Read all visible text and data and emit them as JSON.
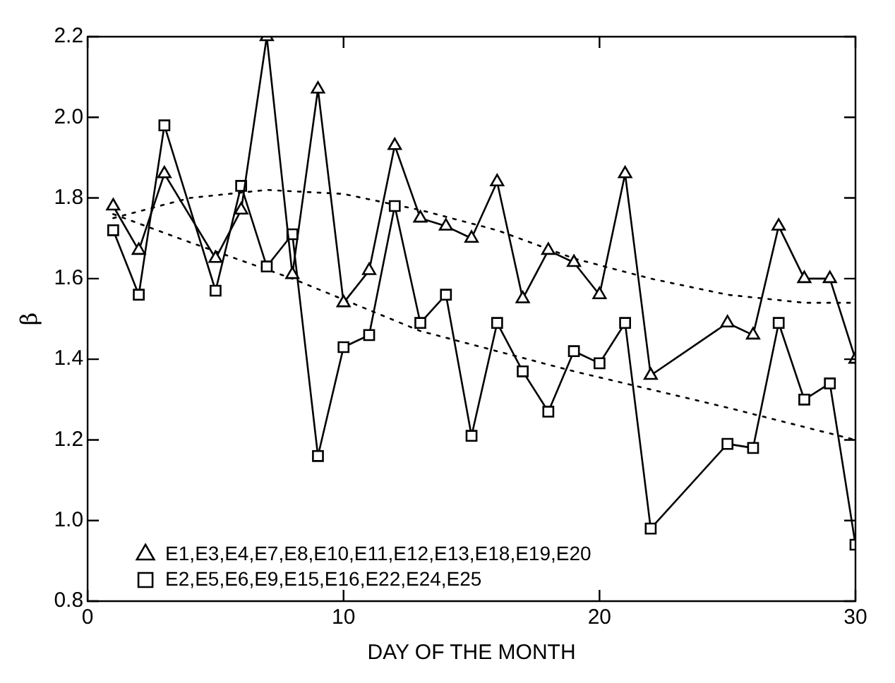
{
  "chart_data": {
    "type": "line",
    "xlabel": "DAY OF THE MONTH",
    "ylabel": "β",
    "xlim": [
      0,
      30
    ],
    "xticks": [
      0,
      10,
      20,
      30
    ],
    "ylim": [
      0.8,
      2.2
    ],
    "yticks": [
      0.8,
      {
        "value": 1,
        "label": "1.0"
      },
      1.2,
      1.4,
      1.6,
      1.8,
      {
        "value": 2,
        "label": "2.0"
      },
      2.2
    ],
    "grid": false,
    "legend": "bottom left",
    "series": [
      {
        "name": "E1,E3,E4,E7,E8,E10,E11,E12,E13,E18,E19,E20",
        "color": "#000000",
        "marker": "triangle",
        "line_style": "solid",
        "x": [
          1,
          2,
          3,
          5,
          6,
          7,
          8,
          9,
          10,
          11,
          12,
          13,
          14,
          15,
          16,
          17,
          18,
          19,
          20,
          21,
          22,
          25,
          26,
          27,
          28,
          29,
          30
        ],
        "values": [
          1.78,
          1.67,
          1.86,
          1.65,
          1.77,
          2.2,
          1.61,
          2.07,
          1.54,
          1.62,
          1.93,
          1.75,
          1.73,
          1.7,
          1.84,
          1.55,
          1.67,
          1.64,
          1.56,
          1.86,
          1.36,
          1.49,
          1.46,
          1.73,
          1.6,
          1.6,
          1.4
        ]
      },
      {
        "name": "E2,E5,E6,E9,E15,E16,E22,E24,E25",
        "color": "#000000",
        "marker": "square",
        "line_style": "solid",
        "x": [
          1,
          2,
          3,
          5,
          6,
          7,
          8,
          9,
          10,
          11,
          12,
          13,
          14,
          15,
          16,
          17,
          18,
          19,
          20,
          21,
          22,
          25,
          26,
          27,
          28,
          29,
          30
        ],
        "values": [
          1.72,
          1.56,
          1.98,
          1.57,
          1.83,
          1.63,
          1.71,
          1.16,
          1.43,
          1.46,
          1.78,
          1.49,
          1.56,
          1.21,
          1.49,
          1.37,
          1.27,
          1.42,
          1.39,
          1.49,
          0.98,
          1.19,
          1.18,
          1.49,
          1.3,
          1.34,
          0.94
        ]
      },
      {
        "color": "#000000",
        "marker": "none",
        "line_style": "dotted",
        "x": [
          1,
          4,
          7,
          10,
          13,
          16,
          19,
          22,
          25,
          28,
          30
        ],
        "values": [
          1.75,
          1.8,
          1.82,
          1.81,
          1.77,
          1.72,
          1.65,
          1.6,
          1.56,
          1.54,
          1.54
        ]
      },
      {
        "color": "#000000",
        "marker": "none",
        "line_style": "dotted",
        "x": [
          1,
          4,
          8,
          13,
          19,
          25,
          30
        ],
        "values": [
          1.76,
          1.69,
          1.6,
          1.47,
          1.37,
          1.28,
          1.2
        ]
      }
    ]
  }
}
